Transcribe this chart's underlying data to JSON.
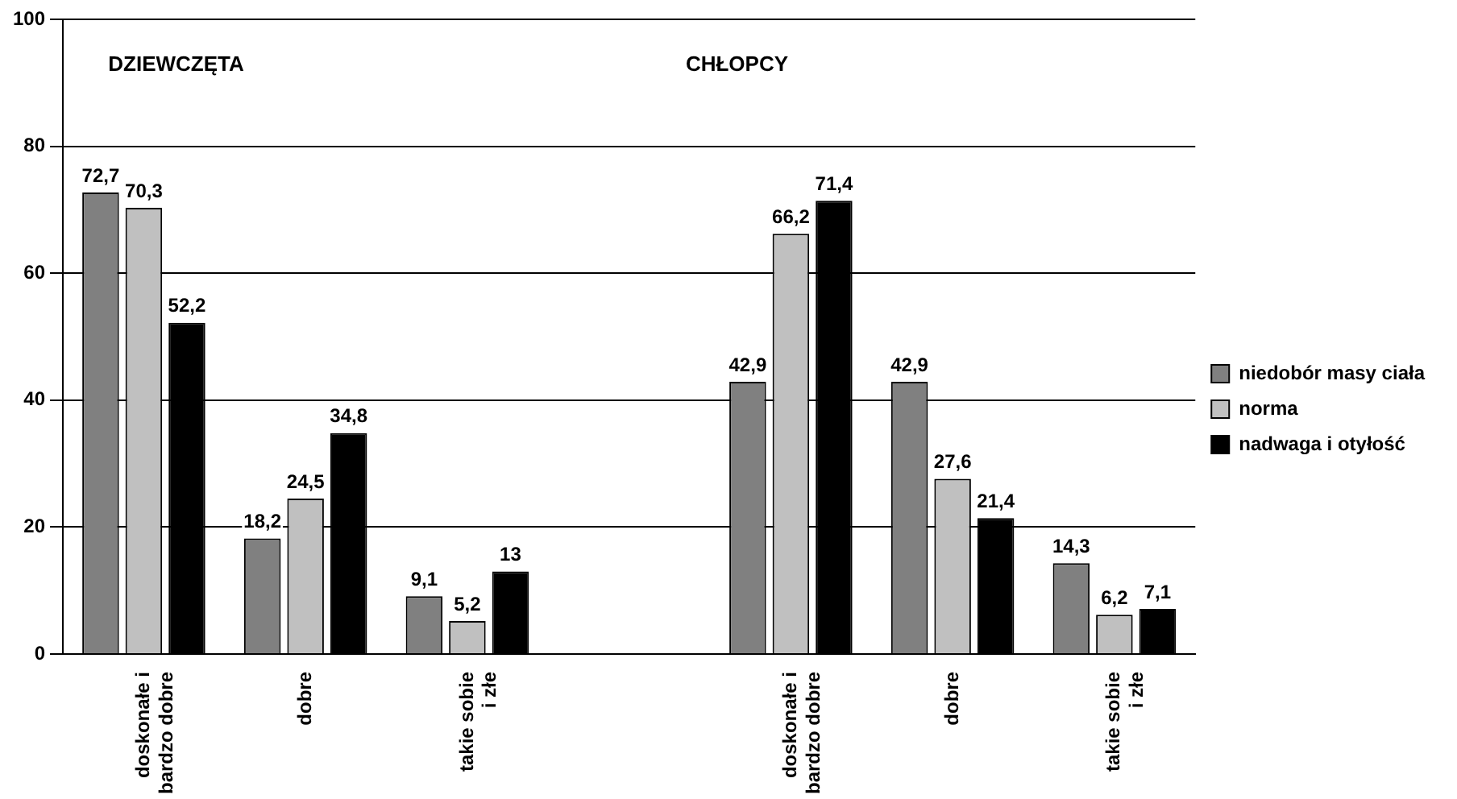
{
  "chart_data": {
    "type": "bar",
    "categories": [
      "doskonałe i bardzo dobre",
      "dobre",
      "takie sobie i złe",
      null,
      "doskonałe i bardzo dobre",
      "dobre",
      "takie sobie i złe"
    ],
    "series": [
      {
        "name": "niedobór masy ciała",
        "color": "#808080",
        "values": [
          72.7,
          18.2,
          9.1,
          null,
          42.9,
          42.9,
          14.3
        ],
        "value_labels": [
          "72,7",
          "18,2",
          "9,1",
          null,
          "42,9",
          "42,9",
          "14,3"
        ]
      },
      {
        "name": "norma",
        "color": "#c0c0c0",
        "values": [
          70.3,
          24.5,
          5.2,
          null,
          66.2,
          27.6,
          6.2
        ],
        "value_labels": [
          "70,3",
          "24,5",
          "5,2",
          null,
          "66,2",
          "27,6",
          "6,2"
        ]
      },
      {
        "name": "nadwaga i otyłość",
        "color": "#000000",
        "values": [
          52.2,
          34.8,
          13,
          null,
          71.4,
          21.4,
          7.1
        ],
        "value_labels": [
          "52,2",
          "34,8",
          "13",
          null,
          "71,4",
          "21,4",
          "7,1"
        ]
      }
    ],
    "annotations": [
      "DZIEWCZĘTA",
      "CHŁOPCY"
    ],
    "ylim": [
      0,
      100
    ],
    "yticks": [
      0,
      20,
      40,
      60,
      80,
      100
    ],
    "grid": "y",
    "legend": "right"
  }
}
